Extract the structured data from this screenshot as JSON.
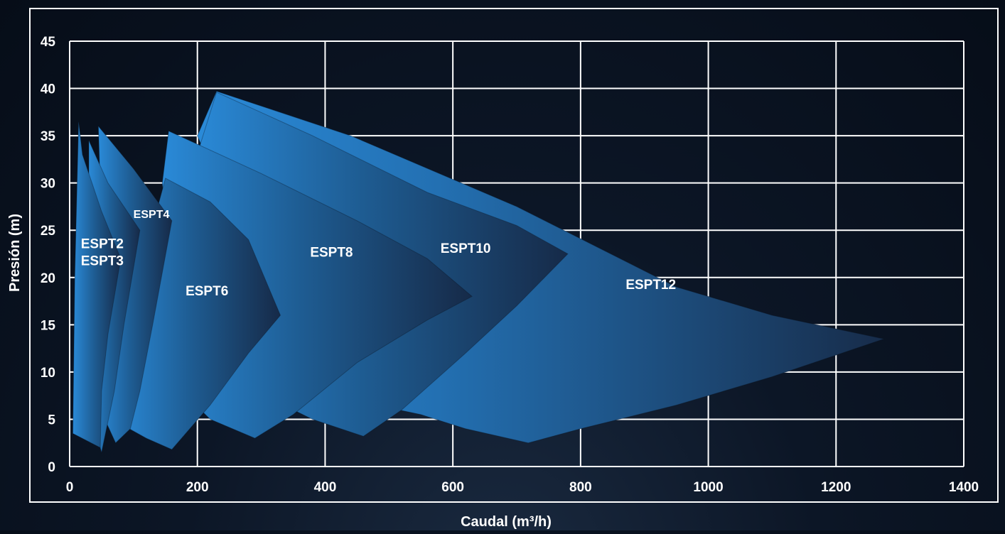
{
  "chart_data": {
    "type": "area",
    "xlabel": "Caudal (m³/h)",
    "ylabel": "Presión (m)",
    "xlim": [
      0,
      1400
    ],
    "ylim": [
      0,
      45
    ],
    "x_ticks": [
      "0",
      "200",
      "400",
      "600",
      "800",
      "1000",
      "1200",
      "1400"
    ],
    "y_ticks": [
      "0",
      "5",
      "10",
      "15",
      "20",
      "25",
      "30",
      "35",
      "40",
      "45"
    ],
    "grid": true,
    "series": [
      {
        "name": "ESPT12",
        "label": {
          "x": 910,
          "y": 18.8
        },
        "points": [
          [
            200,
            35
          ],
          [
            230,
            39.7
          ],
          [
            440,
            35
          ],
          [
            700,
            27.5
          ],
          [
            950,
            19
          ],
          [
            1100,
            16
          ],
          [
            1275,
            13.5
          ],
          [
            1100,
            9.5
          ],
          [
            950,
            6.5
          ],
          [
            800,
            4
          ],
          [
            718,
            2.5
          ],
          [
            620,
            4
          ],
          [
            550,
            5.5
          ],
          [
            480,
            6.5
          ],
          [
            380,
            6
          ]
        ]
      },
      {
        "name": "ESPT10",
        "label": {
          "x": 620,
          "y": 22.6
        },
        "points": [
          [
            195,
            32
          ],
          [
            230,
            39.6
          ],
          [
            380,
            35
          ],
          [
            560,
            29
          ],
          [
            700,
            25.5
          ],
          [
            780,
            22.5
          ],
          [
            700,
            17
          ],
          [
            620,
            12
          ],
          [
            520,
            6
          ],
          [
            460,
            3.2
          ],
          [
            380,
            5
          ],
          [
            320,
            7
          ],
          [
            250,
            9
          ]
        ]
      },
      {
        "name": "ESPT8",
        "label": {
          "x": 410,
          "y": 22.2
        },
        "points": [
          [
            145,
            30
          ],
          [
            155,
            35.5
          ],
          [
            300,
            31
          ],
          [
            450,
            26
          ],
          [
            560,
            22
          ],
          [
            630,
            18
          ],
          [
            560,
            15.5
          ],
          [
            450,
            11
          ],
          [
            350,
            5.5
          ],
          [
            290,
            3
          ],
          [
            220,
            5
          ],
          [
            175,
            8
          ]
        ]
      },
      {
        "name": "ESPT6",
        "label": {
          "x": 215,
          "y": 18.1
        },
        "points": [
          [
            75,
            5
          ],
          [
            100,
            18
          ],
          [
            150,
            30.5
          ],
          [
            220,
            28
          ],
          [
            280,
            24
          ],
          [
            330,
            16
          ],
          [
            280,
            12
          ],
          [
            220,
            6.5
          ],
          [
            160,
            1.8
          ],
          [
            120,
            3
          ],
          [
            80,
            4.5
          ]
        ]
      },
      {
        "name": "ESPT4",
        "label": {
          "x": 128,
          "y": 26.3
        },
        "points": [
          [
            55,
            5
          ],
          [
            50,
            25
          ],
          [
            45,
            36
          ],
          [
            100,
            31.5
          ],
          [
            160,
            26
          ],
          [
            130,
            15
          ],
          [
            110,
            8
          ],
          [
            95,
            4
          ],
          [
            72,
            2.5
          ]
        ]
      },
      {
        "name": "ESPT3",
        "label": {
          "x": 51,
          "y": 21.3
        },
        "points": [
          [
            30,
            34.5
          ],
          [
            60,
            30
          ],
          [
            90,
            27
          ],
          [
            110,
            25
          ],
          [
            85,
            15
          ],
          [
            70,
            8
          ],
          [
            50,
            1.5
          ],
          [
            35,
            5
          ],
          [
            30,
            15
          ]
        ]
      },
      {
        "name": "ESPT2",
        "label": {
          "x": 51,
          "y": 23.1
        },
        "points": [
          [
            5,
            3.5
          ],
          [
            8,
            20
          ],
          [
            14,
            36.5
          ],
          [
            20,
            33
          ],
          [
            50,
            27
          ],
          [
            80,
            22
          ],
          [
            60,
            14
          ],
          [
            50,
            8
          ],
          [
            48,
            2
          ]
        ]
      }
    ]
  }
}
